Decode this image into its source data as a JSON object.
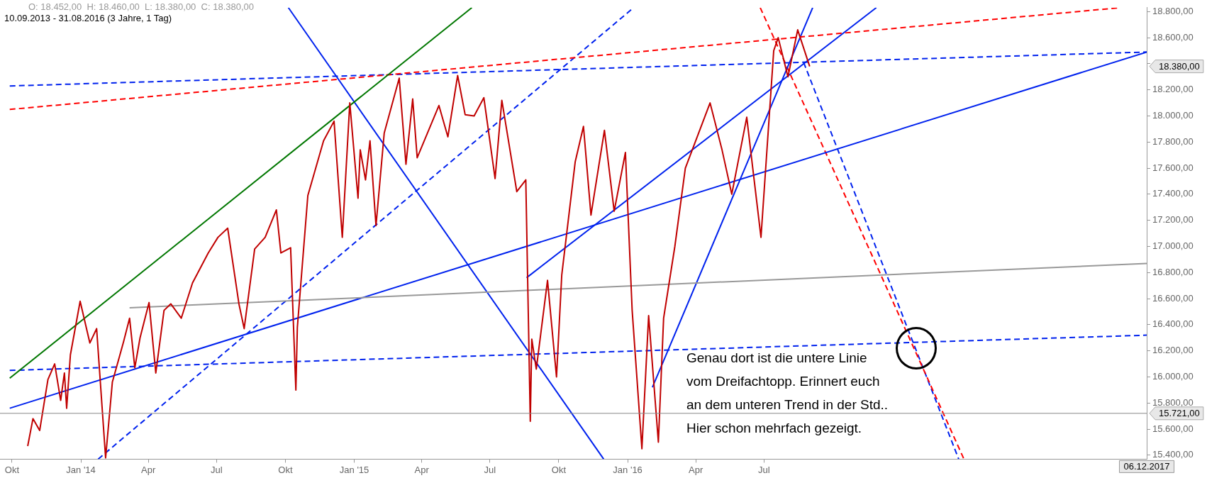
{
  "chart_data": {
    "type": "line",
    "title": "O: 18.452,00  H: 18.460,00  L: 18.380,00  C: 18.380,00",
    "subtitle": "10.09.2013 - 31.08.2016 (3 Jahre, 1 Tag)",
    "xlim": [
      "2013-09-15",
      "2017-11-24"
    ],
    "xticks": [
      {
        "value": "2013-10-01",
        "label": "Okt"
      },
      {
        "value": "2014-01-01",
        "label": "Jan '14"
      },
      {
        "value": "2014-04-01",
        "label": "Apr"
      },
      {
        "value": "2014-07-01",
        "label": "Jul"
      },
      {
        "value": "2014-10-01",
        "label": "Okt"
      },
      {
        "value": "2015-01-01",
        "label": "Jan '15"
      },
      {
        "value": "2015-04-01",
        "label": "Apr"
      },
      {
        "value": "2015-07-01",
        "label": "Jul"
      },
      {
        "value": "2015-10-01",
        "label": "Okt"
      },
      {
        "value": "2016-01-01",
        "label": "Jan '16"
      },
      {
        "value": "2016-04-01",
        "label": "Apr"
      },
      {
        "value": "2016-07-01",
        "label": "Jul"
      }
    ],
    "ylim": [
      15370,
      18830
    ],
    "yticks": [
      {
        "value": 15400,
        "label": "15.400,00"
      },
      {
        "value": 15600,
        "label": "15.600,00"
      },
      {
        "value": 15800,
        "label": "15.800,00"
      },
      {
        "value": 16000,
        "label": "16.000,00"
      },
      {
        "value": 16200,
        "label": "16.200,00"
      },
      {
        "value": 16400,
        "label": "16.400,00"
      },
      {
        "value": 16600,
        "label": "16.600,00"
      },
      {
        "value": 16800,
        "label": "16.800,00"
      },
      {
        "value": 17000,
        "label": "17.000,00"
      },
      {
        "value": 17200,
        "label": "17.200,00"
      },
      {
        "value": 17400,
        "label": "17.400,00"
      },
      {
        "value": 17600,
        "label": "17.600,00"
      },
      {
        "value": 17800,
        "label": "17.800,00"
      },
      {
        "value": 18000,
        "label": "18.000,00"
      },
      {
        "value": 18200,
        "label": "18.200,00"
      },
      {
        "value": 18400,
        "label": null
      },
      {
        "value": 18600,
        "label": "18.600,00"
      },
      {
        "value": 18800,
        "label": "18.800,00"
      }
    ],
    "grid": false,
    "legend": false,
    "marker": "none",
    "series": [
      {
        "color": "#c00000",
        "line_style": "solid",
        "x": [
          "2013-10-22",
          "2013-10-29",
          "2013-11-07",
          "2013-11-18",
          "2013-11-27",
          "2013-12-05",
          "2013-12-10",
          "2013-12-13",
          "2013-12-18",
          "2013-12-31",
          "2014-01-13",
          "2014-01-22",
          "2014-02-03",
          "2014-02-12",
          "2014-02-27",
          "2014-03-07",
          "2014-03-14",
          "2014-03-21",
          "2014-04-02",
          "2014-04-11",
          "2014-04-22",
          "2014-05-01",
          "2014-05-15",
          "2014-05-30",
          "2014-06-20",
          "2014-07-03",
          "2014-07-16",
          "2014-07-31",
          "2014-08-07",
          "2014-08-21",
          "2014-09-04",
          "2014-09-19",
          "2014-09-25",
          "2014-10-08",
          "2014-10-15",
          "2014-10-17",
          "2014-10-31",
          "2014-11-21",
          "2014-12-05",
          "2014-12-16",
          "2014-12-26",
          "2015-01-06",
          "2015-01-09",
          "2015-01-16",
          "2015-01-22",
          "2015-01-30",
          "2015-02-10",
          "2015-03-02",
          "2015-03-11",
          "2015-03-20",
          "2015-03-26",
          "2015-04-24",
          "2015-05-06",
          "2015-05-19",
          "2015-05-29",
          "2015-06-10",
          "2015-06-23",
          "2015-07-08",
          "2015-07-17",
          "2015-08-06",
          "2015-08-18",
          "2015-08-24",
          "2015-08-26",
          "2015-09-01",
          "2015-09-16",
          "2015-09-28",
          "2015-10-05",
          "2015-10-23",
          "2015-11-03",
          "2015-11-13",
          "2015-12-01",
          "2015-12-14",
          "2015-12-29",
          "2016-01-07",
          "2016-01-20",
          "2016-01-29",
          "2016-02-11",
          "2016-02-18",
          "2016-03-04",
          "2016-03-18",
          "2016-04-20",
          "2016-05-06",
          "2016-05-19",
          "2016-06-08",
          "2016-06-16",
          "2016-06-27",
          "2016-07-14",
          "2016-07-20",
          "2016-08-02",
          "2016-08-15",
          "2016-08-31"
        ],
        "values": [
          15470,
          15680,
          15590,
          15980,
          16100,
          15820,
          16030,
          15760,
          16170,
          16580,
          16260,
          16370,
          15380,
          15960,
          16270,
          16450,
          16070,
          16300,
          16570,
          16030,
          16510,
          16560,
          16450,
          16720,
          16950,
          17070,
          17140,
          16560,
          16370,
          16980,
          17070,
          17280,
          16950,
          16990,
          15900,
          16380,
          17390,
          17810,
          17960,
          17070,
          18100,
          17370,
          17740,
          17510,
          17810,
          17160,
          17870,
          18290,
          17630,
          18130,
          17680,
          18080,
          17840,
          18310,
          18010,
          18000,
          18140,
          17520,
          18120,
          17420,
          17510,
          15660,
          16290,
          16060,
          16740,
          16000,
          16780,
          17650,
          17920,
          17240,
          17890,
          17270,
          17720,
          16510,
          15450,
          16470,
          15500,
          16450,
          17000,
          17600,
          18100,
          17740,
          17400,
          17990,
          17600,
          17070,
          18500,
          18600,
          18300,
          18660,
          18380
        ]
      },
      {
        "color": "#007700",
        "line_style": "solid",
        "x": [
          "2013-09-28",
          "2015-06-07"
        ],
        "values": [
          15990,
          18830
        ]
      },
      {
        "color": "#ff0000",
        "line_style": "dashed",
        "x": [
          "2013-09-28",
          "2017-10-20"
        ],
        "values": [
          18050,
          18830
        ]
      },
      {
        "color": "#0022ee",
        "line_style": "dashed",
        "x": [
          "2013-09-28",
          "2017-11-24"
        ],
        "values": [
          18230,
          18490
        ]
      },
      {
        "color": "#0022ee",
        "line_style": "dashed",
        "x": [
          "2013-09-28",
          "2017-11-24"
        ],
        "values": [
          16050,
          16320
        ]
      },
      {
        "color": "#999999",
        "line_style": "solid",
        "x": [
          "2014-03-07",
          "2017-11-24"
        ],
        "values": [
          16530,
          16870
        ]
      },
      {
        "color": "#0022ee",
        "line_style": "solid",
        "x": [
          "2013-09-28",
          "2017-11-24"
        ],
        "values": [
          15760,
          18490
        ]
      },
      {
        "color": "#0022ee",
        "line_style": "dashed",
        "x": [
          "2014-01-24",
          "2016-01-09"
        ],
        "values": [
          15370,
          18830
        ]
      },
      {
        "color": "#0022ee",
        "line_style": "solid",
        "x": [
          "2014-10-05",
          "2015-11-30"
        ],
        "values": [
          18830,
          15370
        ]
      },
      {
        "color": "#0022ee",
        "line_style": "solid",
        "x": [
          "2015-08-19",
          "2016-11-28"
        ],
        "values": [
          16760,
          18830
        ]
      },
      {
        "color": "#0022ee",
        "line_style": "solid",
        "x": [
          "2016-02-03",
          "2016-09-04"
        ],
        "values": [
          15920,
          18830
        ]
      },
      {
        "color": "#ff0000",
        "line_style": "dashed",
        "x": [
          "2016-06-26",
          "2017-03-25"
        ],
        "values": [
          18830,
          15370
        ]
      },
      {
        "color": "#0022ee",
        "line_style": "dashed",
        "x": [
          "2016-08-23",
          "2017-03-18"
        ],
        "values": [
          18410,
          15370
        ]
      }
    ],
    "ref_lines": [
      {
        "axis": "y",
        "value": 15721,
        "label": "15.721,00",
        "color": "#888888"
      }
    ],
    "annotations": [
      "18.380,00",
      "06.12.2017",
      "Genau dort ist die untere Linie vom Dreifachtopp. Erinnert euch an dem unteren Trend in der Std.. Hier schon mehrfach gezeigt."
    ]
  }
}
